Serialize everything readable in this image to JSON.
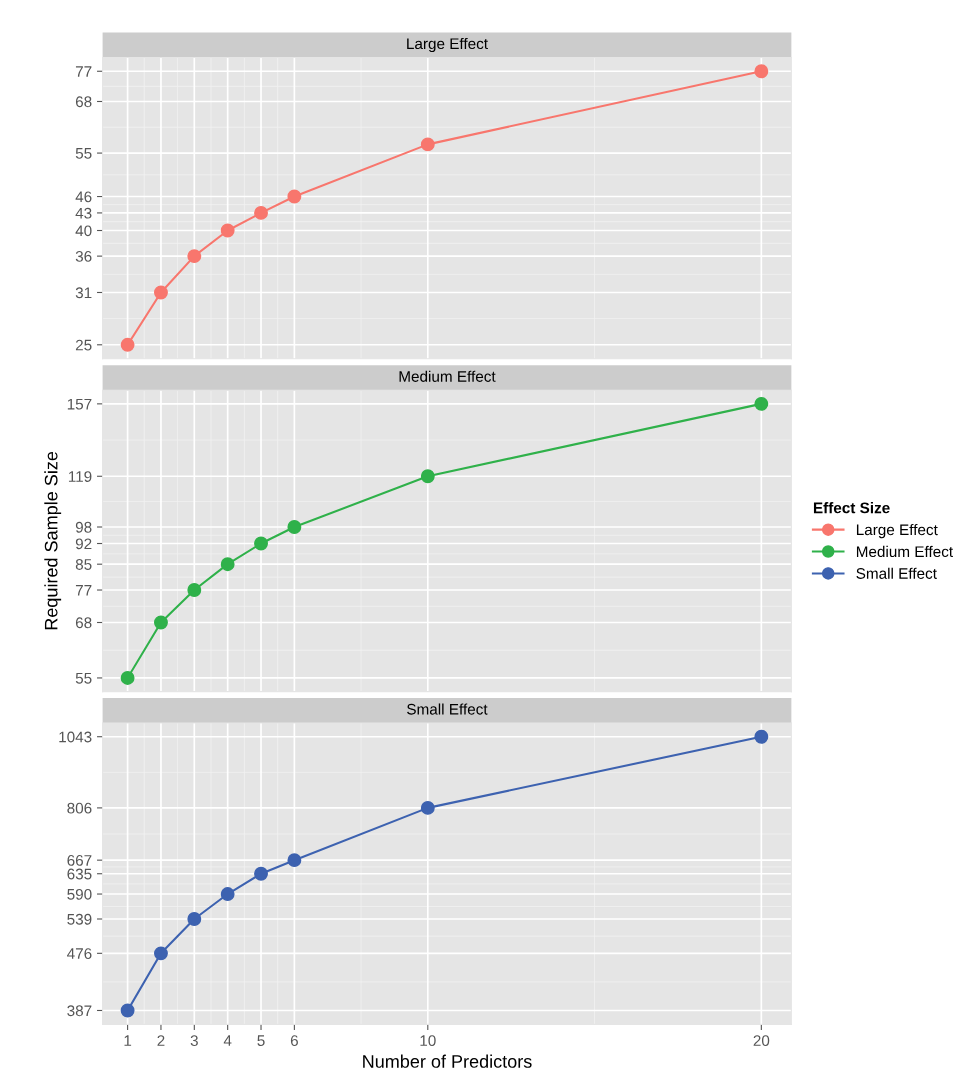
{
  "chart_data": [
    {
      "type": "line",
      "title": "Large Effect",
      "log": "y",
      "marker": "circle",
      "grid": true,
      "legend": "right",
      "legend_title": "Effect Size",
      "tick_labels": "y",
      "xlim": [
        0.25,
        20.9
      ],
      "xticks": [
        1,
        2,
        3,
        4,
        5,
        6,
        10,
        20
      ],
      "ylim": [
        23.6,
        81.5
      ],
      "yticks": [
        25,
        31,
        36,
        40,
        43,
        46,
        55,
        68,
        77
      ],
      "series": [
        {
          "name": "Large Effect",
          "color": "#f8766d",
          "x": [
            1,
            2,
            3,
            4,
            5,
            6,
            10,
            20
          ],
          "values": [
            25,
            31,
            36,
            40,
            43,
            46,
            57,
            77
          ]
        }
      ]
    },
    {
      "type": "line",
      "title": "Medium Effect",
      "log": "y",
      "marker": "circle",
      "grid": true,
      "legend": "right",
      "tick_labels": "y",
      "ylabel": "Required Sample Size",
      "xlim": [
        0.25,
        20.9
      ],
      "xticks": [
        1,
        2,
        3,
        4,
        5,
        6,
        10,
        20
      ],
      "ylim": [
        52.2,
        165.4
      ],
      "yticks": [
        55,
        68,
        77,
        85,
        92,
        98,
        119,
        157
      ],
      "series": [
        {
          "name": "Medium Effect",
          "color": "#2fb14a",
          "x": [
            1,
            2,
            3,
            4,
            5,
            6,
            10,
            20
          ],
          "values": [
            55,
            68,
            77,
            85,
            92,
            98,
            119,
            157
          ]
        }
      ]
    },
    {
      "type": "line",
      "title": "Small Effect",
      "log": "y",
      "marker": "circle",
      "grid": true,
      "legend": "right",
      "xlabel": "Number of Predictors",
      "xlim": [
        0.25,
        20.9
      ],
      "xticks": [
        1,
        2,
        3,
        4,
        5,
        6,
        10,
        20
      ],
      "ylim": [
        368,
        1096
      ],
      "yticks": [
        387,
        476,
        539,
        590,
        635,
        667,
        806,
        1043
      ],
      "series": [
        {
          "name": "Small Effect",
          "color": "#3d62b0",
          "x": [
            1,
            2,
            3,
            4,
            5,
            6,
            10,
            20
          ],
          "values": [
            387,
            476,
            539,
            590,
            635,
            667,
            806,
            1043
          ]
        }
      ]
    }
  ]
}
